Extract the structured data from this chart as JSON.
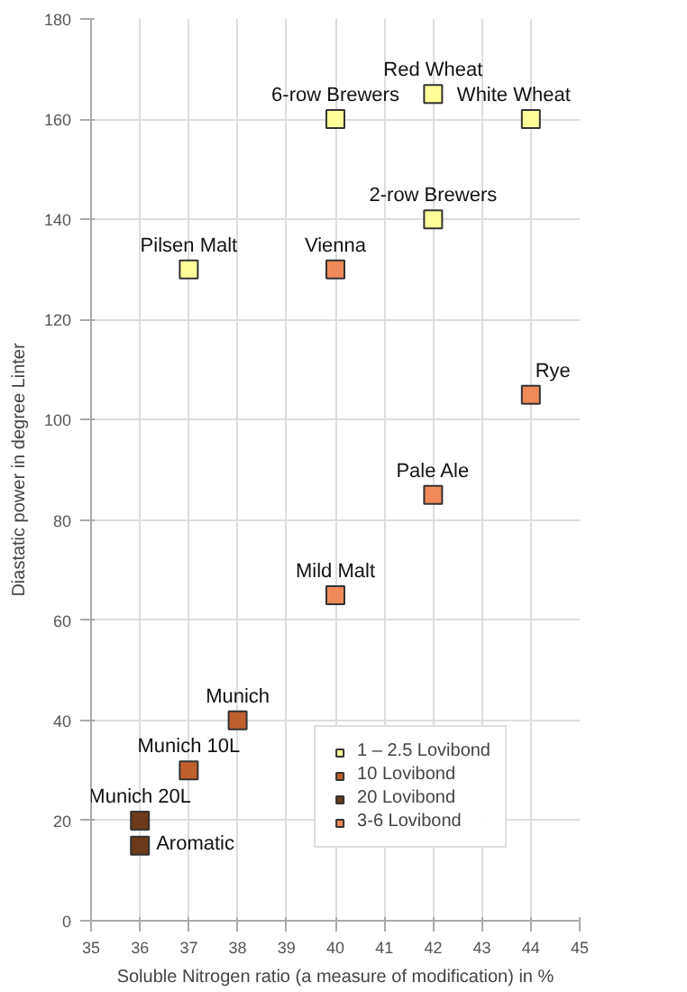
{
  "chart_data": {
    "type": "scatter",
    "xlabel": "Soluble Nitrogen ratio (a measure of modification) in %",
    "ylabel": "Diastatic power in degree Linter",
    "xlim": [
      35,
      45
    ],
    "xticks": [
      35,
      36,
      37,
      38,
      39,
      40,
      41,
      42,
      43,
      44,
      45
    ],
    "ylim": [
      0,
      180
    ],
    "yticks": [
      0,
      20,
      40,
      60,
      80,
      100,
      120,
      140,
      160,
      180
    ],
    "grid": true,
    "legend": "bottom right",
    "marker": "square",
    "series": [
      {
        "name": "1 – 2.5 Lovibond",
        "color": "#ffff99",
        "x": [
          40,
          42,
          44,
          42,
          37
        ],
        "values": [
          160,
          165,
          160,
          140,
          130
        ]
      },
      {
        "name": "10 Lovibond",
        "color": "#c0602e",
        "x": [
          38,
          37
        ],
        "values": [
          40,
          30
        ]
      },
      {
        "name": "20 Lovibond",
        "color": "#6b3a1a",
        "x": [
          36,
          36
        ],
        "values": [
          20,
          15
        ]
      },
      {
        "name": "3-6 Lovibond",
        "color": "#f08a5a",
        "x": [
          40,
          44,
          42,
          40
        ],
        "values": [
          130,
          105,
          85,
          65
        ]
      }
    ],
    "annotations": [
      {
        "text": "6-row Brewers",
        "x": 40,
        "y": 160
      },
      {
        "text": "Red Wheat",
        "x": 42,
        "y": 165
      },
      {
        "text": "White Wheat",
        "x": 44,
        "y": 160
      },
      {
        "text": "2-row Brewers",
        "x": 42,
        "y": 140
      },
      {
        "text": "Pilsen Malt",
        "x": 37,
        "y": 130
      },
      {
        "text": "Vienna",
        "x": 40,
        "y": 130
      },
      {
        "text": "Rye",
        "x": 44,
        "y": 105
      },
      {
        "text": "Pale Ale",
        "x": 42,
        "y": 85
      },
      {
        "text": "Mild Malt",
        "x": 40,
        "y": 65
      },
      {
        "text": "Munich",
        "x": 38,
        "y": 40
      },
      {
        "text": "Munich 10L",
        "x": 37,
        "y": 30
      },
      {
        "text": "Munich 20L",
        "x": 36,
        "y": 20
      },
      {
        "text": "Aromatic",
        "x": 36,
        "y": 15
      }
    ]
  }
}
